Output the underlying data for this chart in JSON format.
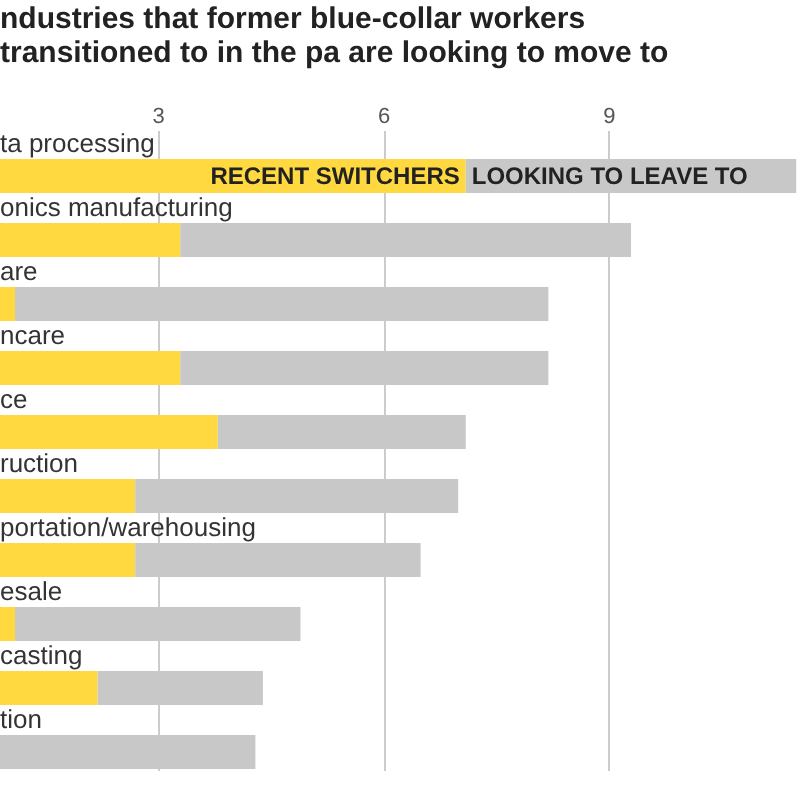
{
  "chart_data": {
    "type": "bar",
    "orientation": "horizontal",
    "stacked": true,
    "title": "ndustries that former blue-collar workers transitioned to in the pa are looking to move to",
    "categories": [
      "ta processing",
      "onics manufacturing",
      "are",
      "ncare",
      "ce",
      "ruction",
      "portation/warehousing",
      "esale",
      "casting",
      "tion"
    ],
    "series": [
      {
        "name": "RECENT SWITCHERS",
        "color": "#ffd93f",
        "values": [
          7.1,
          3.3,
          1.1,
          3.3,
          3.8,
          2.7,
          2.7,
          1.1,
          2.2,
          null
        ]
      },
      {
        "name": "LOOKING TO LEAVE TO",
        "color": "#c8c8c8",
        "values": [
          4.4,
          6.0,
          7.1,
          4.9,
          3.3,
          4.3,
          3.8,
          3.8,
          2.2,
          4.3
        ]
      }
    ],
    "xlim": [
      0.9,
      11.55
    ],
    "xticks": [
      3,
      6,
      9
    ],
    "grid": "x",
    "legend": false
  }
}
